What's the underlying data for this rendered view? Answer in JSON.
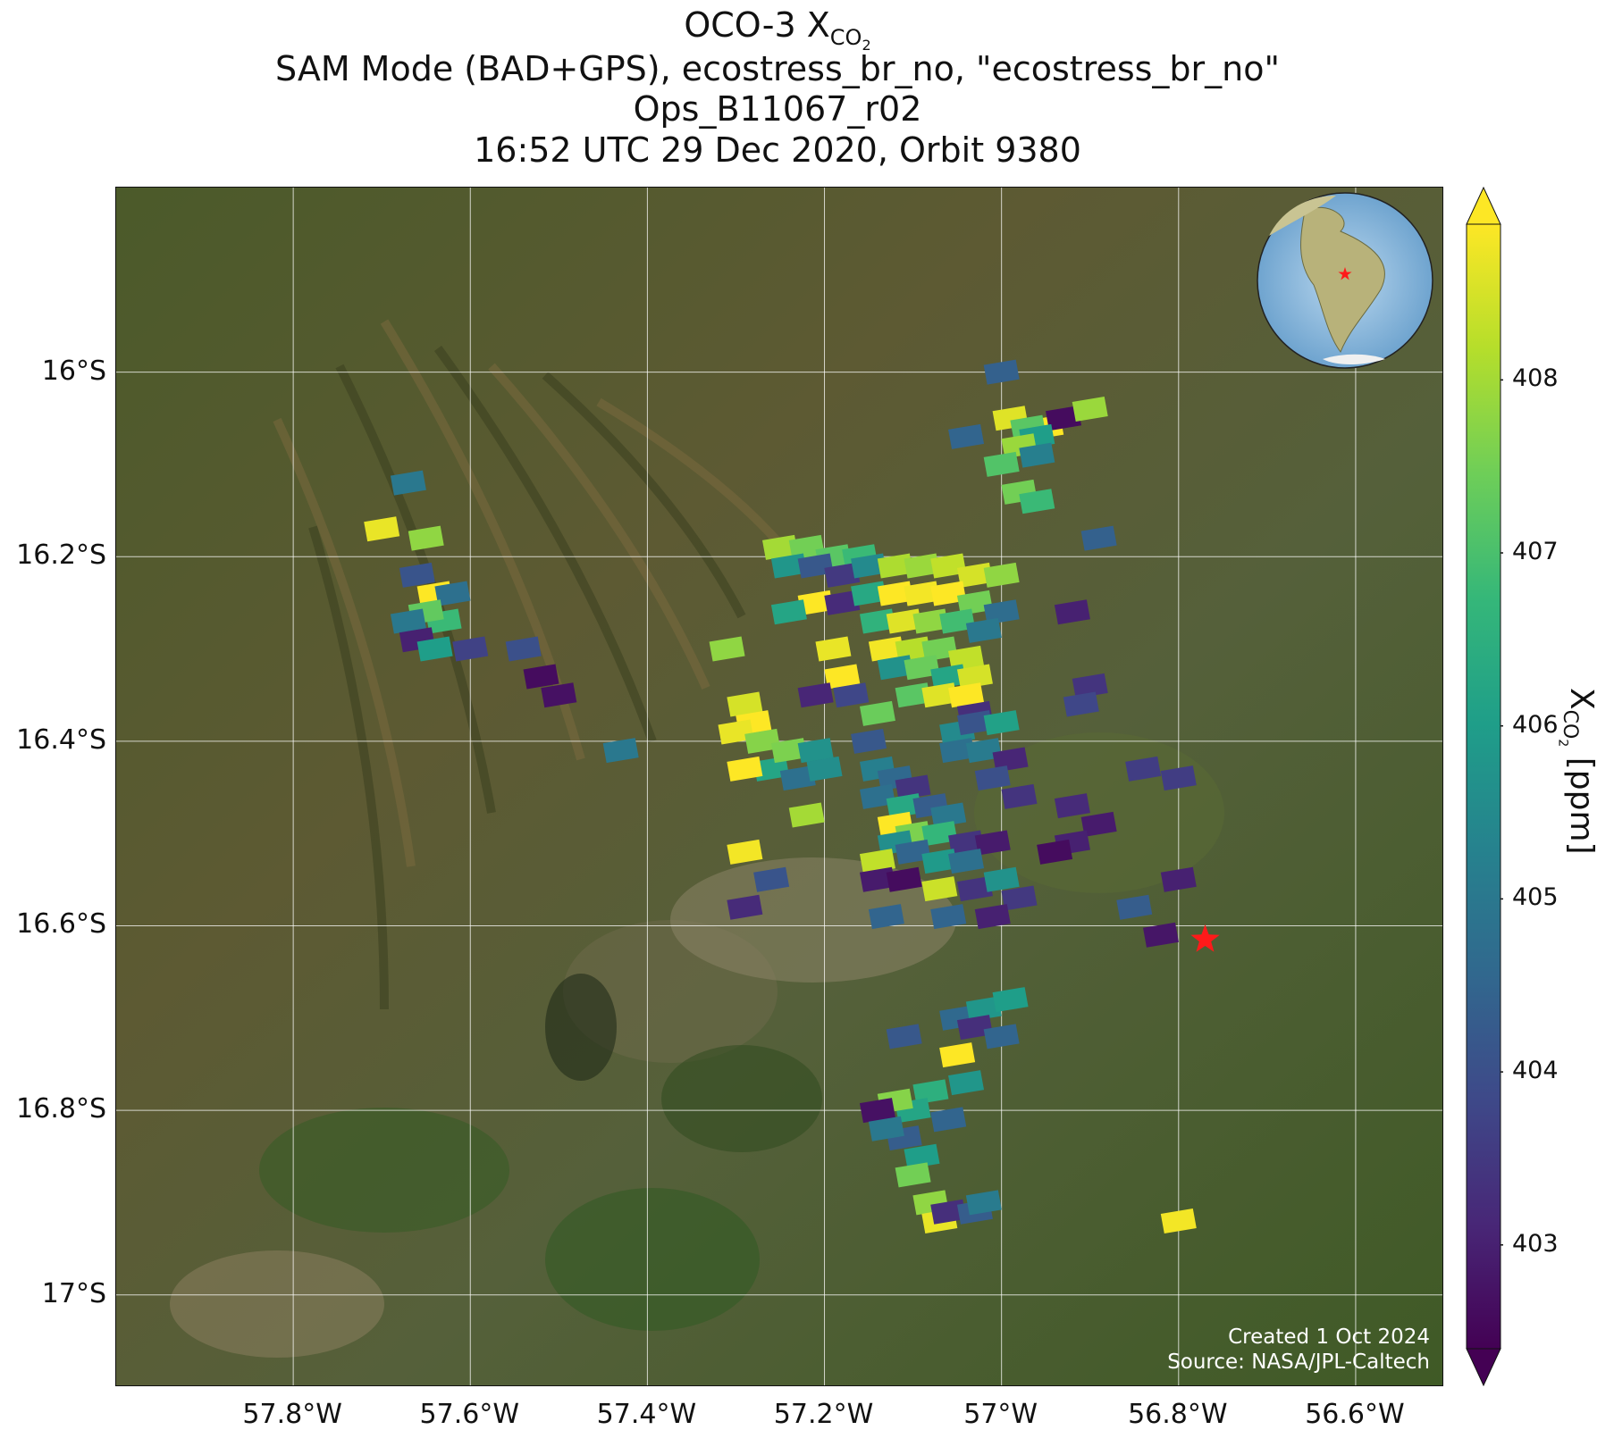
{
  "title": {
    "line1_main": "OCO-3 X",
    "line1_sub": "CO",
    "line1_sub2": "2",
    "line2": "SAM Mode (BAD+GPS), ecostress_br_no, \"ecostress_br_no\"",
    "line3": "Ops_B11067_r02",
    "line4": "16:52 UTC 29 Dec 2020, Orbit 9380"
  },
  "axes": {
    "lat_ticks": [
      "16°S",
      "16.2°S",
      "16.4°S",
      "16.6°S",
      "16.8°S",
      "17°S"
    ],
    "lon_ticks": [
      "57.8°W",
      "57.6°W",
      "57.4°W",
      "57.2°W",
      "57°W",
      "56.8°W",
      "56.6°W"
    ],
    "lat_values": [
      -16.0,
      -16.2,
      -16.4,
      -16.6,
      -16.8,
      -17.0
    ],
    "lon_values": [
      -57.8,
      -57.6,
      -57.4,
      -57.2,
      -57.0,
      -56.8,
      -56.6
    ],
    "lat_range": [
      -17.1,
      -15.8
    ],
    "lon_range": [
      -58.0,
      -56.5
    ]
  },
  "target": {
    "name": "target-star",
    "lon": -56.77,
    "lat": -16.615,
    "color": "#ff1a1a"
  },
  "colorbar": {
    "label_main": "X",
    "label_sub": "CO",
    "label_sub2": "2",
    "label_unit": " [ppm]",
    "ticks": [
      "403",
      "404",
      "405",
      "406",
      "407",
      "408"
    ],
    "tick_values": [
      403,
      404,
      405,
      406,
      407,
      408
    ],
    "range": [
      402.4,
      408.9
    ],
    "colormap": "viridis",
    "extend": "both"
  },
  "credits": {
    "line1": "Created 1 Oct 2024",
    "line2": "Source: NASA/JPL-Caltech"
  },
  "colors": {
    "viridis": [
      "#440154",
      "#482777",
      "#3e4989",
      "#31688e",
      "#26828e",
      "#1f9e89",
      "#35b779",
      "#6ece58",
      "#b5de2b",
      "#fde725"
    ]
  },
  "soundings": [
    [
      -57.0,
      -16.0,
      404.4
    ],
    [
      -56.95,
      -16.06,
      408.9
    ],
    [
      -56.93,
      -16.05,
      402.6
    ],
    [
      -56.9,
      -16.04,
      407.9
    ],
    [
      -56.99,
      -16.05,
      408.6
    ],
    [
      -56.97,
      -16.06,
      407.2
    ],
    [
      -56.96,
      -16.07,
      406.0
    ],
    [
      -56.98,
      -16.08,
      407.9
    ],
    [
      -57.04,
      -16.07,
      404.5
    ],
    [
      -57.0,
      -16.1,
      407.1
    ],
    [
      -56.96,
      -16.09,
      405.2
    ],
    [
      -56.98,
      -16.13,
      407.5
    ],
    [
      -56.96,
      -16.14,
      406.8
    ],
    [
      -56.89,
      -16.18,
      404.4
    ],
    [
      -56.92,
      -16.26,
      403.0
    ],
    [
      -57.67,
      -16.12,
      405.0
    ],
    [
      -57.7,
      -16.17,
      408.7
    ],
    [
      -57.65,
      -16.18,
      407.8
    ],
    [
      -57.66,
      -16.22,
      404.1
    ],
    [
      -57.64,
      -16.24,
      408.9
    ],
    [
      -57.62,
      -16.24,
      404.8
    ],
    [
      -57.63,
      -16.27,
      406.8
    ],
    [
      -57.65,
      -16.26,
      407.3
    ],
    [
      -57.67,
      -16.27,
      405.0
    ],
    [
      -57.66,
      -16.29,
      403.0
    ],
    [
      -57.64,
      -16.3,
      406.0
    ],
    [
      -57.6,
      -16.3,
      403.7
    ],
    [
      -57.54,
      -16.3,
      404.0
    ],
    [
      -57.52,
      -16.33,
      402.6
    ],
    [
      -57.5,
      -16.35,
      402.7
    ],
    [
      -57.43,
      -16.41,
      405.0
    ],
    [
      -57.31,
      -16.3,
      407.8
    ],
    [
      -57.29,
      -16.36,
      408.5
    ],
    [
      -57.28,
      -16.38,
      409.0
    ],
    [
      -57.3,
      -16.39,
      408.7
    ],
    [
      -57.27,
      -16.4,
      407.7
    ],
    [
      -57.26,
      -16.43,
      406.2
    ],
    [
      -57.24,
      -16.41,
      407.6
    ],
    [
      -57.29,
      -16.43,
      408.9
    ],
    [
      -57.23,
      -16.44,
      404.8
    ],
    [
      -57.21,
      -16.41,
      405.7
    ],
    [
      -57.22,
      -16.48,
      408.0
    ],
    [
      -57.29,
      -16.52,
      408.8
    ],
    [
      -57.26,
      -16.55,
      404.1
    ],
    [
      -57.29,
      -16.58,
      403.2
    ],
    [
      -57.25,
      -16.19,
      408.0
    ],
    [
      -57.22,
      -16.19,
      407.5
    ],
    [
      -57.19,
      -16.2,
      407.2
    ],
    [
      -57.16,
      -16.2,
      406.8
    ],
    [
      -57.24,
      -16.21,
      405.8
    ],
    [
      -57.21,
      -16.21,
      404.2
    ],
    [
      -57.18,
      -16.22,
      403.5
    ],
    [
      -57.15,
      -16.21,
      405.5
    ],
    [
      -57.12,
      -16.21,
      408.1
    ],
    [
      -57.09,
      -16.21,
      407.9
    ],
    [
      -57.06,
      -16.21,
      408.3
    ],
    [
      -57.03,
      -16.22,
      408.5
    ],
    [
      -57.0,
      -16.22,
      407.8
    ],
    [
      -57.21,
      -16.25,
      408.9
    ],
    [
      -57.18,
      -16.25,
      403.2
    ],
    [
      -57.15,
      -16.24,
      406.3
    ],
    [
      -57.12,
      -16.24,
      408.9
    ],
    [
      -57.09,
      -16.24,
      408.8
    ],
    [
      -57.06,
      -16.24,
      408.9
    ],
    [
      -57.03,
      -16.25,
      407.5
    ],
    [
      -57.0,
      -16.26,
      404.7
    ],
    [
      -57.24,
      -16.26,
      406.2
    ],
    [
      -57.14,
      -16.27,
      406.6
    ],
    [
      -57.11,
      -16.27,
      408.6
    ],
    [
      -57.08,
      -16.27,
      407.8
    ],
    [
      -57.05,
      -16.27,
      406.9
    ],
    [
      -57.02,
      -16.28,
      405.0
    ],
    [
      -57.13,
      -16.3,
      408.8
    ],
    [
      -57.1,
      -16.3,
      408.2
    ],
    [
      -57.07,
      -16.3,
      407.5
    ],
    [
      -57.04,
      -16.31,
      408.3
    ],
    [
      -57.12,
      -16.32,
      405.7
    ],
    [
      -57.09,
      -16.32,
      407.4
    ],
    [
      -57.06,
      -16.33,
      406.2
    ],
    [
      -57.03,
      -16.33,
      408.5
    ],
    [
      -57.1,
      -16.35,
      407.2
    ],
    [
      -57.07,
      -16.35,
      408.6
    ],
    [
      -57.04,
      -16.35,
      408.9
    ],
    [
      -57.19,
      -16.3,
      408.7
    ],
    [
      -57.18,
      -16.33,
      408.9
    ],
    [
      -57.21,
      -16.35,
      403.1
    ],
    [
      -57.17,
      -16.35,
      403.8
    ],
    [
      -57.14,
      -16.37,
      407.4
    ],
    [
      -57.15,
      -16.4,
      404.2
    ],
    [
      -57.2,
      -16.43,
      405.6
    ],
    [
      -57.03,
      -16.37,
      403.3
    ],
    [
      -57.05,
      -16.39,
      405.5
    ],
    [
      -57.03,
      -16.38,
      404.1
    ],
    [
      -57.0,
      -16.38,
      406.1
    ],
    [
      -57.05,
      -16.41,
      404.8
    ],
    [
      -57.02,
      -16.41,
      405.1
    ],
    [
      -56.99,
      -16.42,
      403.1
    ],
    [
      -57.01,
      -16.44,
      404.0
    ],
    [
      -57.14,
      -16.43,
      405.2
    ],
    [
      -57.12,
      -16.44,
      404.6
    ],
    [
      -57.1,
      -16.45,
      403.4
    ],
    [
      -57.14,
      -16.46,
      404.8
    ],
    [
      -57.11,
      -16.47,
      406.3
    ],
    [
      -57.08,
      -16.47,
      404.3
    ],
    [
      -57.06,
      -16.48,
      405.0
    ],
    [
      -57.12,
      -16.49,
      408.9
    ],
    [
      -57.1,
      -16.5,
      407.6
    ],
    [
      -57.07,
      -16.5,
      406.7
    ],
    [
      -57.04,
      -16.51,
      403.4
    ],
    [
      -57.01,
      -16.51,
      402.9
    ],
    [
      -57.12,
      -16.51,
      405.6
    ],
    [
      -57.14,
      -16.53,
      408.3
    ],
    [
      -57.1,
      -16.52,
      404.5
    ],
    [
      -57.07,
      -16.53,
      405.9
    ],
    [
      -57.04,
      -16.53,
      404.8
    ],
    [
      -57.14,
      -16.55,
      402.9
    ],
    [
      -57.11,
      -16.55,
      402.6
    ],
    [
      -57.07,
      -16.56,
      408.4
    ],
    [
      -57.03,
      -16.56,
      403.4
    ],
    [
      -57.0,
      -16.55,
      405.7
    ],
    [
      -56.98,
      -16.57,
      403.5
    ],
    [
      -57.01,
      -16.59,
      403.0
    ],
    [
      -57.06,
      -16.59,
      404.5
    ],
    [
      -57.13,
      -16.59,
      404.5
    ],
    [
      -56.98,
      -16.46,
      403.4
    ],
    [
      -56.92,
      -16.47,
      403.2
    ],
    [
      -56.89,
      -16.49,
      402.9
    ],
    [
      -56.92,
      -16.51,
      403.0
    ],
    [
      -56.94,
      -16.52,
      402.6
    ],
    [
      -56.84,
      -16.43,
      403.6
    ],
    [
      -56.8,
      -16.44,
      403.6
    ],
    [
      -56.9,
      -16.34,
      403.4
    ],
    [
      -56.91,
      -16.36,
      403.8
    ],
    [
      -56.8,
      -16.55,
      403.0
    ],
    [
      -56.85,
      -16.58,
      404.3
    ],
    [
      -56.82,
      -16.61,
      402.8
    ],
    [
      -57.11,
      -16.72,
      404.2
    ],
    [
      -57.05,
      -16.7,
      404.6
    ],
    [
      -57.02,
      -16.69,
      405.8
    ],
    [
      -56.99,
      -16.68,
      406.0
    ],
    [
      -57.03,
      -16.71,
      403.3
    ],
    [
      -57.0,
      -16.72,
      404.5
    ],
    [
      -57.05,
      -16.74,
      408.9
    ],
    [
      -57.04,
      -16.77,
      405.8
    ],
    [
      -57.08,
      -16.78,
      406.5
    ],
    [
      -57.1,
      -16.8,
      406.2
    ],
    [
      -57.12,
      -16.79,
      407.7
    ],
    [
      -57.14,
      -16.8,
      402.7
    ],
    [
      -57.11,
      -16.83,
      404.3
    ],
    [
      -57.13,
      -16.82,
      405.0
    ],
    [
      -57.09,
      -16.85,
      406.0
    ],
    [
      -57.1,
      -16.87,
      407.5
    ],
    [
      -57.08,
      -16.9,
      407.8
    ],
    [
      -57.07,
      -16.92,
      408.7
    ],
    [
      -57.06,
      -16.91,
      403.3
    ],
    [
      -57.03,
      -16.91,
      404.3
    ],
    [
      -57.02,
      -16.9,
      405.1
    ],
    [
      -57.06,
      -16.81,
      404.5
    ],
    [
      -56.8,
      -16.92,
      408.8
    ]
  ]
}
